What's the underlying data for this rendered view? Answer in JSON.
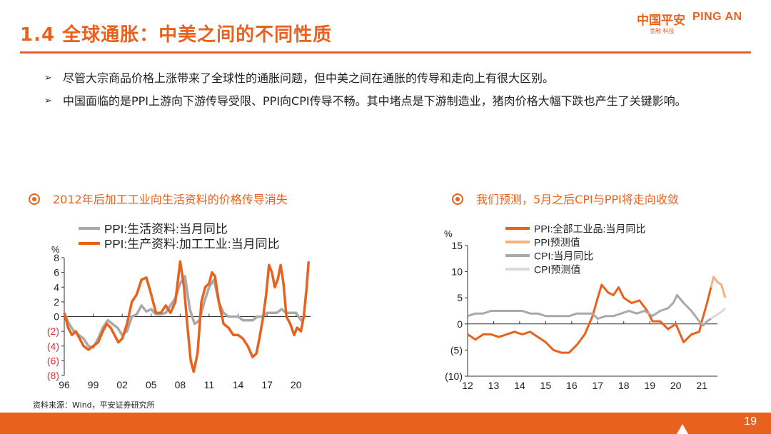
{
  "header": {
    "title": "1.4 全球通胀：中美之间的不同性质",
    "logo_cn": "中国平安",
    "logo_en": "PING AN",
    "logo_sub": "金融·科技"
  },
  "bullets": [
    "尽管大宗商品价格上涨带来了全球性的通胀问题，但中美之间在通胀的传导和走向上有很大区别。",
    "中国面临的是PPI上游向下游传导受限、PPI向CPI传导不畅。其中堵点是下游制造业，猪肉价格大幅下跌也产生了关键影响。"
  ],
  "bullet_icon": "arrow-right-icon",
  "source": "资料来源：Wind，平安证券研究所",
  "page_number": "19",
  "colors": {
    "accent": "#e8621e",
    "gray": "#a9a9a9",
    "light_orange": "#f4b183",
    "light_gray": "#d9d9d9",
    "negative_label": "#e03030"
  },
  "chart_data": [
    {
      "type": "line",
      "title": "2012年后加工工业向生活资料的价格传导消失",
      "unit": "%",
      "ylim": [
        -8,
        8
      ],
      "yticks": [
        8,
        6,
        4,
        2,
        0,
        -2,
        -4,
        -6,
        -8
      ],
      "ytick_labels": [
        "8",
        "6",
        "4",
        "2",
        "0",
        "(2)",
        "(4)",
        "(6)",
        "(8)"
      ],
      "xlim": [
        1996,
        2021.5
      ],
      "xticks": [
        1996,
        1999,
        2002,
        2005,
        2008,
        2011,
        2014,
        2017,
        2020
      ],
      "xtick_labels": [
        "96",
        "99",
        "02",
        "05",
        "08",
        "11",
        "14",
        "17",
        "20"
      ],
      "legend_position": "top-left",
      "series": [
        {
          "name": "PPI:生活资料:当月同比",
          "color": "#a9a9a9",
          "points": [
            [
              1996,
              0.5
            ],
            [
              1996.5,
              -1
            ],
            [
              1997,
              -2
            ],
            [
              1997.5,
              -2.5
            ],
            [
              1998,
              -3
            ],
            [
              1998.5,
              -4
            ],
            [
              1999,
              -4.2
            ],
            [
              1999.5,
              -3
            ],
            [
              2000,
              -1.5
            ],
            [
              2000.5,
              -0.5
            ],
            [
              2001,
              -1
            ],
            [
              2001.5,
              -1.5
            ],
            [
              2002,
              -2.5
            ],
            [
              2002.5,
              -2
            ],
            [
              2003,
              0
            ],
            [
              2003.5,
              0.3
            ],
            [
              2004,
              1.5
            ],
            [
              2004.5,
              0.7
            ],
            [
              2005,
              1
            ],
            [
              2005.5,
              0.3
            ],
            [
              2006,
              0.3
            ],
            [
              2006.5,
              0.5
            ],
            [
              2007,
              1.5
            ],
            [
              2007.5,
              2.5
            ],
            [
              2008,
              4.5
            ],
            [
              2008.5,
              5.5
            ],
            [
              2009,
              1
            ],
            [
              2009.5,
              -1
            ],
            [
              2010,
              -0.5
            ],
            [
              2010.5,
              2
            ],
            [
              2011,
              4
            ],
            [
              2011.5,
              5
            ],
            [
              2012,
              2
            ],
            [
              2012.5,
              0.5
            ],
            [
              2013,
              0
            ],
            [
              2013.5,
              0
            ],
            [
              2014,
              0
            ],
            [
              2014.5,
              -0.5
            ],
            [
              2015,
              -0.5
            ],
            [
              2015.5,
              -0.5
            ],
            [
              2016,
              0
            ],
            [
              2016.5,
              0
            ],
            [
              2017,
              0.5
            ],
            [
              2017.5,
              0.5
            ],
            [
              2018,
              0.5
            ],
            [
              2018.5,
              1
            ],
            [
              2019,
              0.5
            ],
            [
              2019.5,
              0.5
            ],
            [
              2020,
              0.5
            ],
            [
              2020.5,
              -0.5
            ],
            [
              2021,
              0.3
            ]
          ]
        },
        {
          "name": "PPI:生产资料:加工工业:当月同比",
          "color": "#e8621e",
          "points": [
            [
              1996,
              0.5
            ],
            [
              1996.4,
              -1.5
            ],
            [
              1996.8,
              -2.5
            ],
            [
              1997.2,
              -2
            ],
            [
              1997.6,
              -3
            ],
            [
              1998,
              -4
            ],
            [
              1998.5,
              -4.5
            ],
            [
              1999,
              -4
            ],
            [
              1999.5,
              -3.5
            ],
            [
              2000,
              -2
            ],
            [
              2000.4,
              -1
            ],
            [
              2000.8,
              -1.5
            ],
            [
              2001.2,
              -2.5
            ],
            [
              2001.6,
              -3.5
            ],
            [
              2002,
              -3
            ],
            [
              2002.5,
              -1
            ],
            [
              2003,
              2
            ],
            [
              2003.5,
              3
            ],
            [
              2004,
              5
            ],
            [
              2004.5,
              5.3
            ],
            [
              2005,
              3
            ],
            [
              2005.5,
              0.5
            ],
            [
              2006,
              0.5
            ],
            [
              2006.5,
              1.5
            ],
            [
              2007,
              0.5
            ],
            [
              2007.5,
              2
            ],
            [
              2008,
              7.5
            ],
            [
              2008.4,
              4
            ],
            [
              2008.8,
              -2
            ],
            [
              2009.1,
              -6
            ],
            [
              2009.4,
              -7.5
            ],
            [
              2009.8,
              -5
            ],
            [
              2010.2,
              2
            ],
            [
              2010.6,
              4
            ],
            [
              2011,
              4.5
            ],
            [
              2011.3,
              6
            ],
            [
              2011.6,
              5.5
            ],
            [
              2012,
              2
            ],
            [
              2012.5,
              -1
            ],
            [
              2013,
              -1.5
            ],
            [
              2013.5,
              -2.5
            ],
            [
              2014,
              -2.5
            ],
            [
              2014.5,
              -3
            ],
            [
              2015,
              -4
            ],
            [
              2015.5,
              -5.5
            ],
            [
              2015.9,
              -5
            ],
            [
              2016.2,
              -3
            ],
            [
              2016.6,
              0
            ],
            [
              2016.9,
              3
            ],
            [
              2017.2,
              7
            ],
            [
              2017.5,
              6
            ],
            [
              2017.8,
              4
            ],
            [
              2018.1,
              5
            ],
            [
              2018.4,
              7
            ],
            [
              2018.7,
              4.5
            ],
            [
              2019,
              0
            ],
            [
              2019.4,
              -1
            ],
            [
              2019.8,
              -2.5
            ],
            [
              2020.1,
              -1.5
            ],
            [
              2020.5,
              -2
            ],
            [
              2020.8,
              0
            ],
            [
              2021.1,
              4
            ],
            [
              2021.3,
              7.5
            ]
          ]
        }
      ]
    },
    {
      "type": "line",
      "title": "我们预测，5月之后CPI与PPI将走向收敛",
      "unit": "%",
      "ylim": [
        -10,
        15
      ],
      "yticks": [
        15,
        10,
        5,
        0,
        -5,
        -10
      ],
      "ytick_labels": [
        "15",
        "10",
        "5",
        "0",
        "(5)",
        "(10)"
      ],
      "xlim": [
        2012,
        2021.6
      ],
      "xticks": [
        2012,
        2013,
        2014,
        2015,
        2016,
        2017,
        2018,
        2019,
        2020,
        2021
      ],
      "xtick_labels": [
        "12",
        "13",
        "14",
        "15",
        "16",
        "17",
        "18",
        "19",
        "20",
        "21"
      ],
      "legend_position": "top",
      "series": [
        {
          "name": "PPI:全部工业品:当月同比",
          "color": "#e8621e",
          "points": [
            [
              2012,
              -2
            ],
            [
              2012.3,
              -3
            ],
            [
              2012.6,
              -2
            ],
            [
              2012.9,
              -2
            ],
            [
              2013.2,
              -2.5
            ],
            [
              2013.5,
              -2
            ],
            [
              2013.8,
              -1.5
            ],
            [
              2014.1,
              -2
            ],
            [
              2014.4,
              -1.5
            ],
            [
              2014.7,
              -2.5
            ],
            [
              2015,
              -3.5
            ],
            [
              2015.3,
              -5
            ],
            [
              2015.6,
              -5.5
            ],
            [
              2015.9,
              -5.5
            ],
            [
              2016.2,
              -4
            ],
            [
              2016.5,
              -2
            ],
            [
              2016.8,
              1.5
            ],
            [
              2017,
              5
            ],
            [
              2017.15,
              7.5
            ],
            [
              2017.4,
              6
            ],
            [
              2017.6,
              5.5
            ],
            [
              2017.8,
              7
            ],
            [
              2018,
              5
            ],
            [
              2018.3,
              4
            ],
            [
              2018.6,
              4.5
            ],
            [
              2018.9,
              2.5
            ],
            [
              2019.1,
              0.5
            ],
            [
              2019.4,
              0.5
            ],
            [
              2019.7,
              -1
            ],
            [
              2020,
              0
            ],
            [
              2020.3,
              -3.5
            ],
            [
              2020.6,
              -2
            ],
            [
              2020.9,
              -1.5
            ],
            [
              2021,
              0.5
            ],
            [
              2021.2,
              4
            ],
            [
              2021.35,
              7
            ]
          ]
        },
        {
          "name": "PPI预测值",
          "color": "#f4b183",
          "points": [
            [
              2021.35,
              7
            ],
            [
              2021.45,
              9
            ],
            [
              2021.6,
              8
            ],
            [
              2021.75,
              7.5
            ],
            [
              2021.9,
              5
            ]
          ]
        },
        {
          "name": "CPI:当月同比",
          "color": "#a9a9a9",
          "points": [
            [
              2012,
              1.5
            ],
            [
              2012.3,
              2
            ],
            [
              2012.6,
              2
            ],
            [
              2012.9,
              2.5
            ],
            [
              2013.2,
              2.5
            ],
            [
              2013.5,
              2.5
            ],
            [
              2013.8,
              2.5
            ],
            [
              2014.1,
              2.5
            ],
            [
              2014.4,
              2
            ],
            [
              2014.7,
              2
            ],
            [
              2015,
              1.5
            ],
            [
              2015.3,
              1.5
            ],
            [
              2015.6,
              1.5
            ],
            [
              2015.9,
              1.5
            ],
            [
              2016.2,
              2
            ],
            [
              2016.5,
              2
            ],
            [
              2016.8,
              2
            ],
            [
              2017,
              1
            ],
            [
              2017.3,
              1.5
            ],
            [
              2017.6,
              1.5
            ],
            [
              2017.9,
              2
            ],
            [
              2018.2,
              2.5
            ],
            [
              2018.5,
              2
            ],
            [
              2018.8,
              2.5
            ],
            [
              2019.1,
              1.5
            ],
            [
              2019.4,
              2.5
            ],
            [
              2019.7,
              3
            ],
            [
              2019.9,
              4
            ],
            [
              2020.05,
              5.5
            ],
            [
              2020.3,
              4
            ],
            [
              2020.6,
              2.5
            ],
            [
              2020.9,
              0.5
            ],
            [
              2021.05,
              -0.3
            ],
            [
              2021.2,
              0.5
            ],
            [
              2021.35,
              1
            ]
          ]
        },
        {
          "name": "CPI预测值",
          "color": "#d9d9d9",
          "points": [
            [
              2021.35,
              1
            ],
            [
              2021.5,
              1.5
            ],
            [
              2021.65,
              2
            ],
            [
              2021.8,
              2.5
            ],
            [
              2021.9,
              3
            ]
          ]
        }
      ]
    }
  ]
}
